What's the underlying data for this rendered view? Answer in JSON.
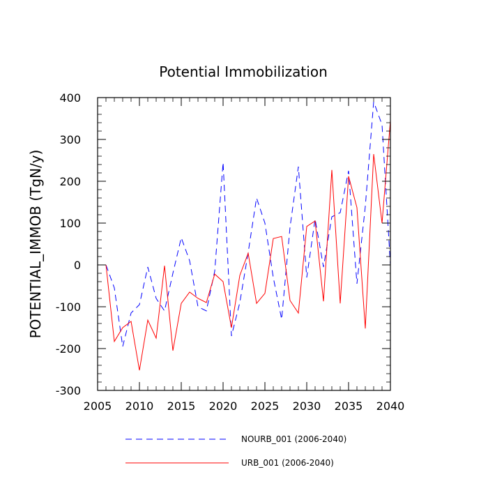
{
  "chart_data": {
    "type": "line",
    "title": "Potential Immobilization",
    "xlabel": "",
    "ylabel": "POTENTIAL_IMMOB  (TgN/y)",
    "xlim": [
      2005,
      2040
    ],
    "ylim": [
      -300,
      400
    ],
    "xticks": [
      2005,
      2010,
      2015,
      2020,
      2025,
      2030,
      2035,
      2040
    ],
    "xtick_labels": [
      "2005",
      "2010",
      "2015",
      "2020",
      "2025",
      "2030",
      "2035",
      "2040"
    ],
    "yticks": [
      -300,
      -200,
      -100,
      0,
      100,
      200,
      300,
      400
    ],
    "ytick_labels": [
      "-300",
      "-200",
      "-100",
      "0",
      "100",
      "200",
      "300",
      "400"
    ],
    "grid": false,
    "legend_position": "bottom",
    "x": [
      2006,
      2007,
      2008,
      2009,
      2010,
      2011,
      2012,
      2013,
      2014,
      2015,
      2016,
      2017,
      2018,
      2019,
      2020,
      2021,
      2022,
      2023,
      2024,
      2025,
      2026,
      2027,
      2028,
      2029,
      2030,
      2031,
      2032,
      2033,
      2034,
      2035,
      2036,
      2037,
      2038,
      2039,
      2040
    ],
    "series": [
      {
        "name": "NOURB_001 (2006-2040)",
        "color": "#0000ff",
        "dash": "dashed",
        "values": [
          0,
          -55,
          -195,
          -115,
          -95,
          -5,
          -80,
          -110,
          -20,
          65,
          10,
          -100,
          -110,
          -15,
          245,
          -170,
          -90,
          30,
          160,
          100,
          -30,
          -130,
          90,
          235,
          -30,
          110,
          -5,
          115,
          125,
          225,
          -45,
          140,
          390,
          335,
          0
        ]
      },
      {
        "name": "URB_001 (2006-2040)",
        "color": "#ff0000",
        "dash": "solid",
        "values": [
          0,
          -183,
          -150,
          -135,
          -252,
          -132,
          -175,
          -2,
          -205,
          -92,
          -65,
          -80,
          -90,
          -22,
          -40,
          -150,
          -25,
          28,
          -92,
          -68,
          63,
          68,
          -85,
          -115,
          92,
          105,
          -87,
          227,
          -92,
          212,
          137,
          -152,
          265,
          100,
          345
        ]
      }
    ]
  }
}
